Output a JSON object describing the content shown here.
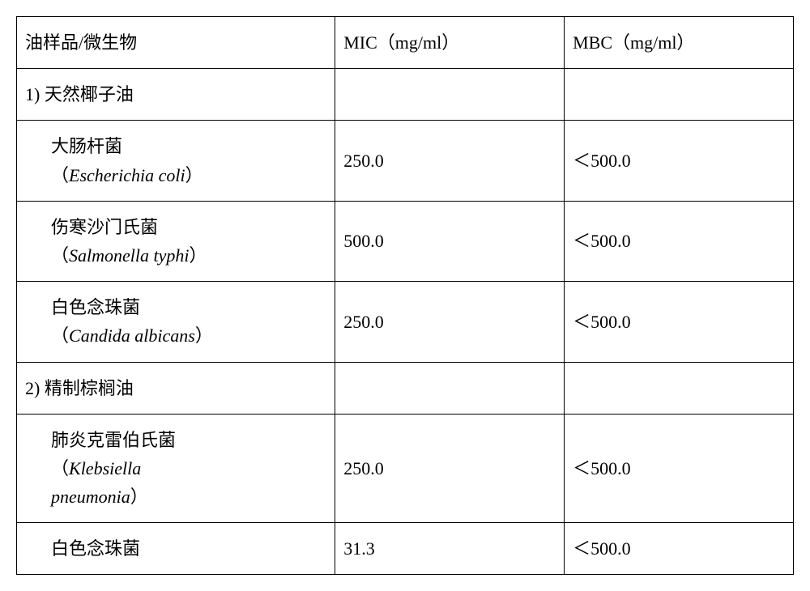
{
  "table": {
    "border_color": "#000000",
    "background_color": "#ffffff",
    "text_color": "#000000",
    "font_size": 22,
    "columns": [
      {
        "label_cn": "油样品/微生物",
        "width_pct": 41
      },
      {
        "label_cn": "MIC（mg/ml）",
        "width_pct": 29.5
      },
      {
        "label_cn": "MBC（mg/ml）",
        "width_pct": 29.5
      }
    ],
    "sections": [
      {
        "title": "1) 天然椰子油",
        "rows": [
          {
            "name_cn": "大肠杆菌",
            "name_latin": "Escherichia coli",
            "mic": "250.0",
            "mbc": "＜500.0"
          },
          {
            "name_cn": "伤寒沙门氏菌",
            "name_latin": "Salmonella typhi",
            "mic": "500.0",
            "mbc": "＜500.0"
          },
          {
            "name_cn": "白色念珠菌",
            "name_latin": "Candida albicans",
            "mic": "250.0",
            "mbc": "＜500.0"
          }
        ]
      },
      {
        "title": "2) 精制棕榈油",
        "rows": [
          {
            "name_cn": "肺炎克雷伯氏菌",
            "name_latin": "Klebsiella pneumonia",
            "mic": "250.0",
            "mbc": "＜500.0"
          },
          {
            "name_cn": "白色念珠菌",
            "name_latin": "",
            "mic": "31.3",
            "mbc": "＜500.0"
          }
        ]
      }
    ]
  }
}
